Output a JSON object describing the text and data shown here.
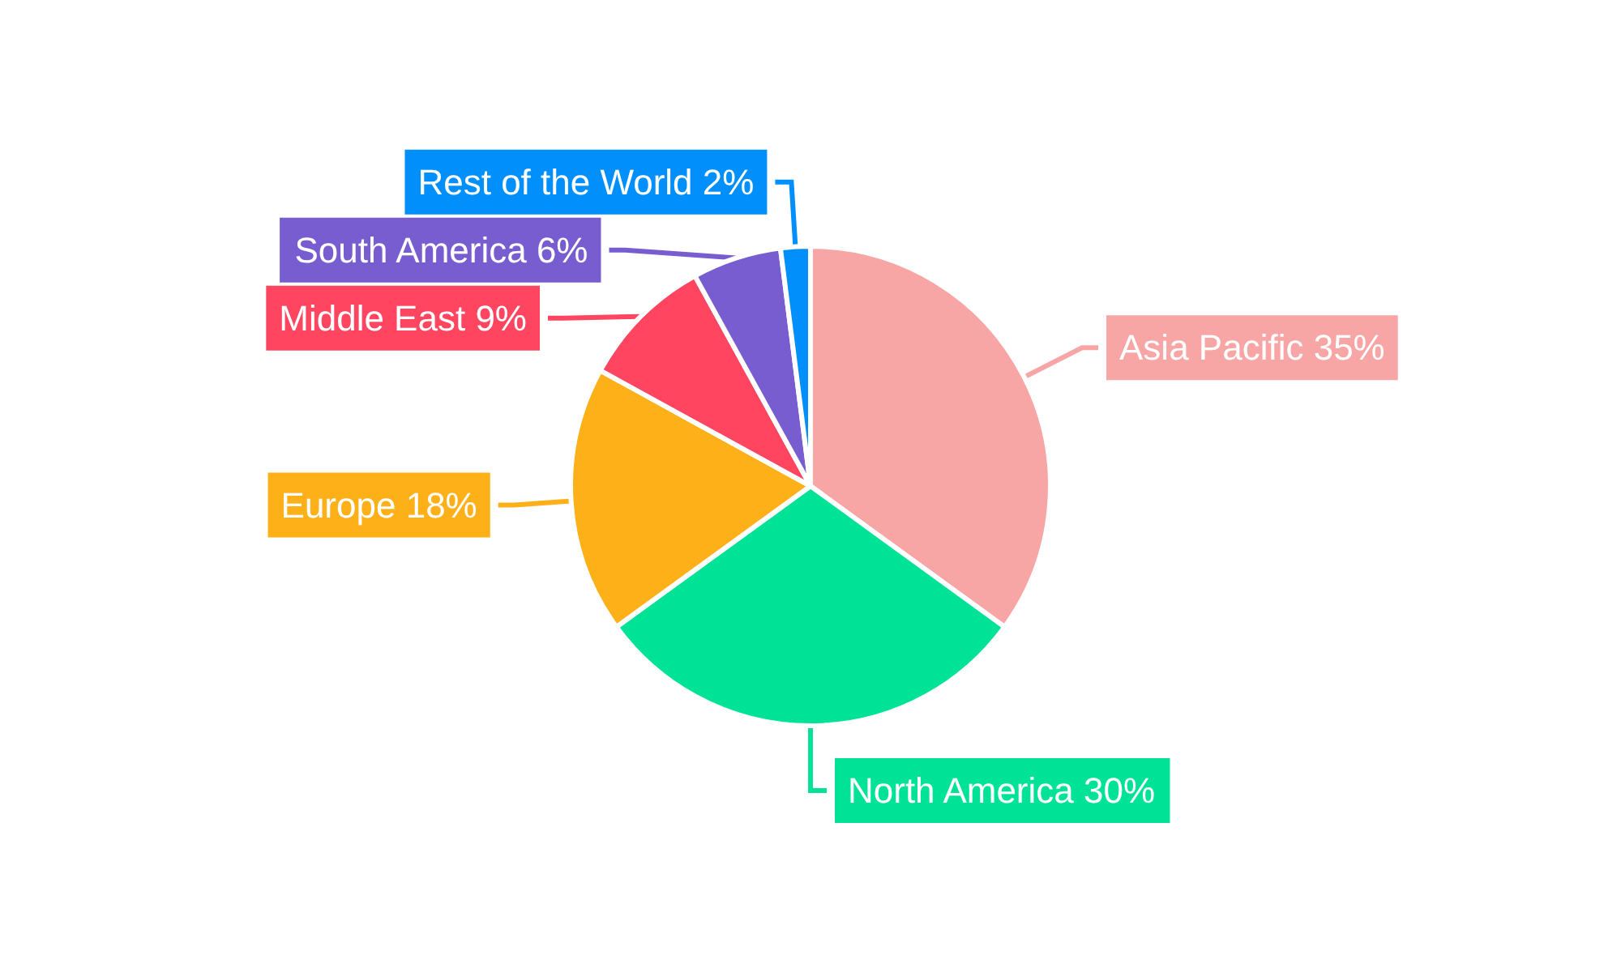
{
  "chart_data": {
    "type": "pie",
    "categories": [
      "Asia Pacific",
      "North America",
      "Europe",
      "Middle East",
      "South America",
      "Rest of the World"
    ],
    "values": [
      35,
      30,
      18,
      9,
      6,
      2
    ],
    "colors": [
      "#f8a5a5",
      "#00e396",
      "#feb019",
      "#ff4560",
      "#775dd0",
      "#008ffb"
    ],
    "value_labels": [
      "35%",
      "30%",
      "18%",
      "9%",
      "6%",
      "2%"
    ],
    "legend": false
  }
}
